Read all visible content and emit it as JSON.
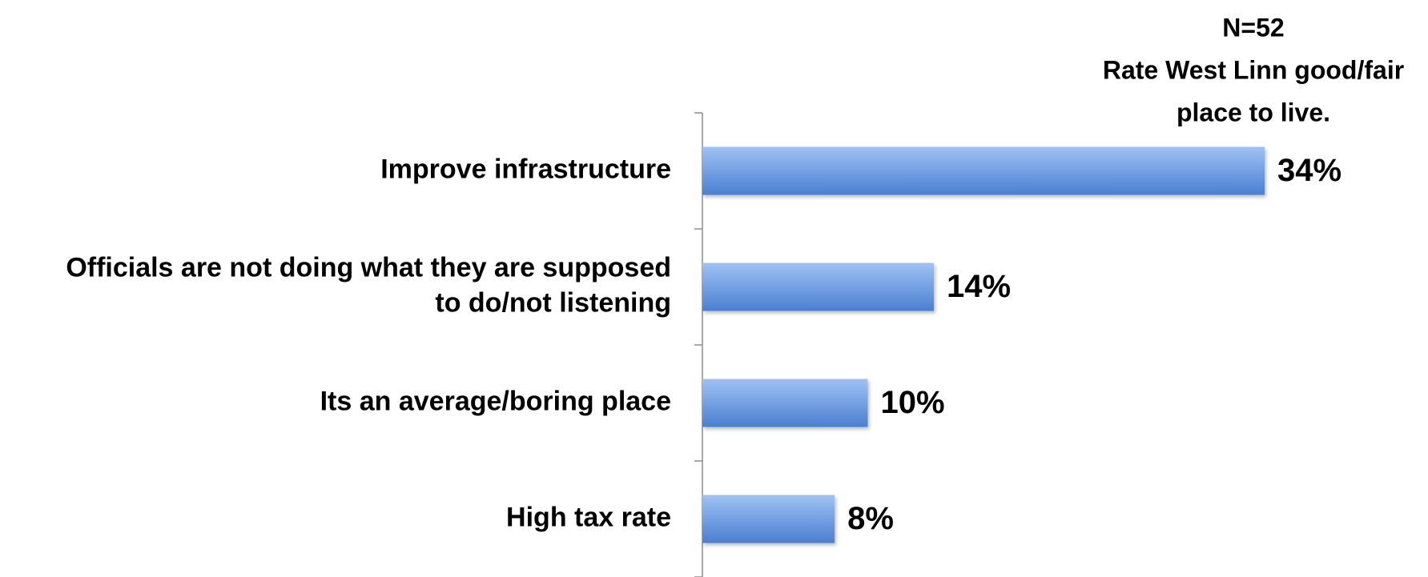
{
  "chart_data": {
    "type": "bar",
    "orientation": "horizontal",
    "header": [
      "N=52",
      "Rate West Linn good/fair",
      "place to live."
    ],
    "categories": [
      "Improve infrastructure",
      "Officials are not doing what they are supposed to do/not listening",
      "Its an average/boring place",
      "High tax rate"
    ],
    "category_lines": [
      [
        "Improve infrastructure"
      ],
      [
        "Officials are not doing what they are supposed",
        "to do/not listening"
      ],
      [
        "Its an average/boring place"
      ],
      [
        "High tax rate"
      ]
    ],
    "values": [
      34,
      14,
      10,
      8
    ],
    "value_labels": [
      "34%",
      "14%",
      "10%",
      "8%"
    ],
    "xlim": [
      0,
      40
    ],
    "grid": false,
    "legend": "none",
    "colors": {
      "bar_top": "#9fc2f5",
      "bar_bottom": "#4a7fd1",
      "axis": "#8c8c8c",
      "text": "#000000"
    }
  }
}
